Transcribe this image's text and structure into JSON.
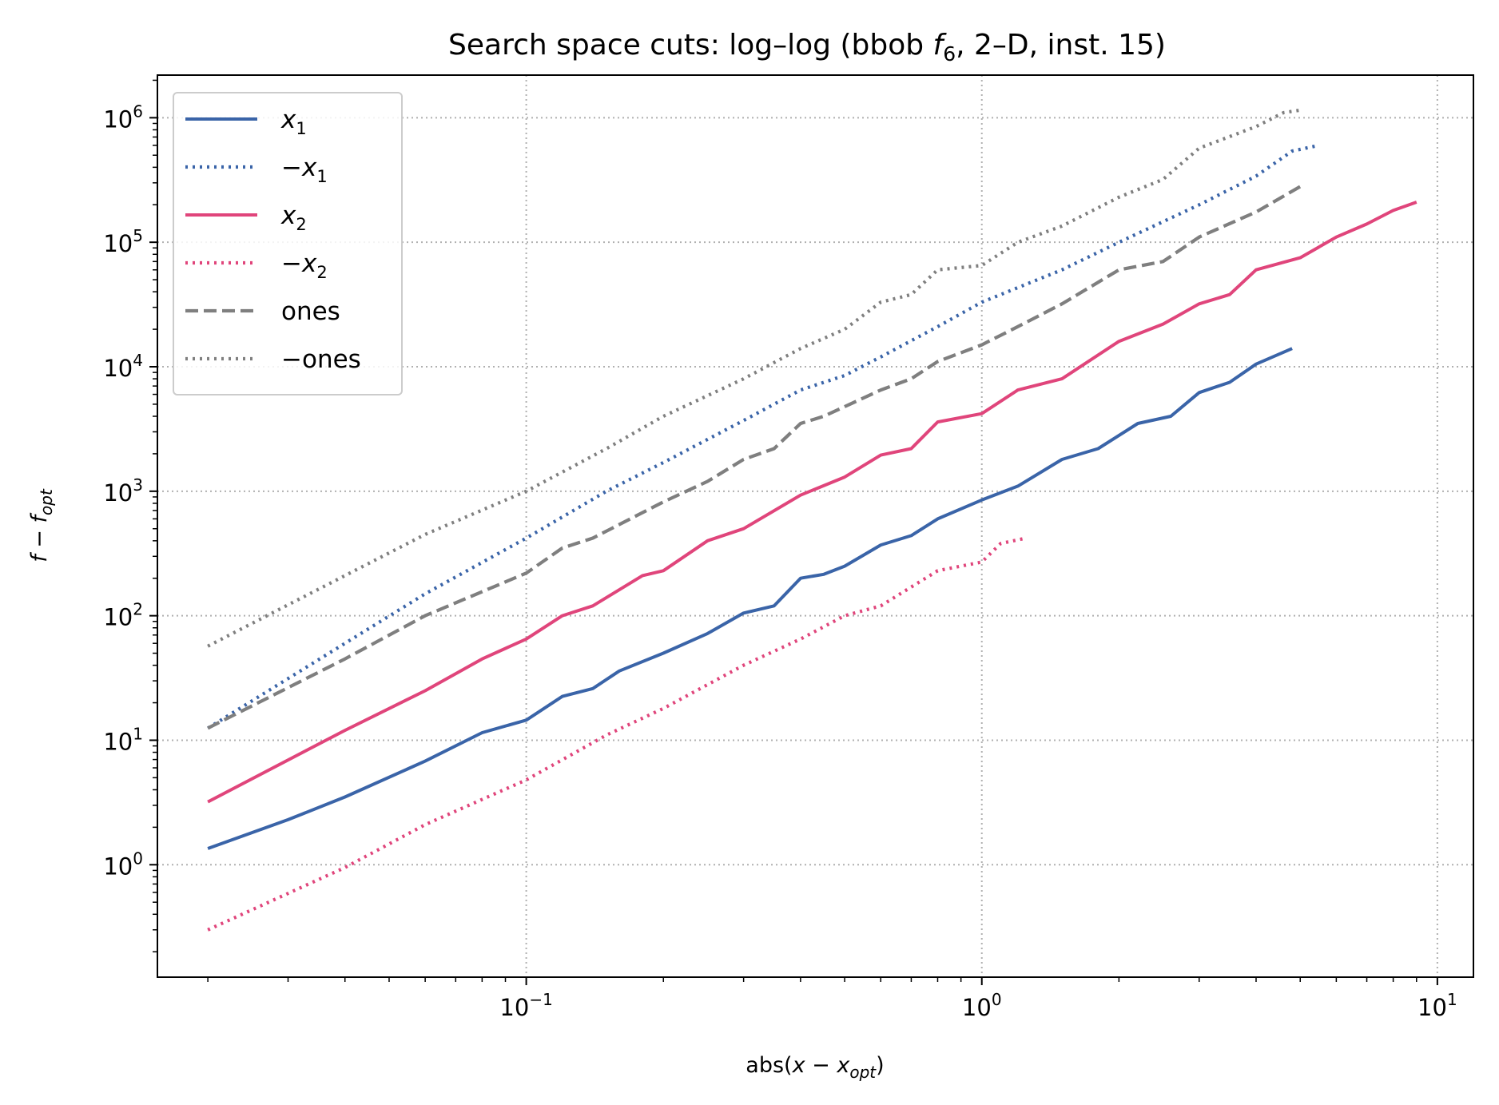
{
  "chart_data": {
    "type": "line",
    "title": "Search space cuts: log–log (bbob f₆, 2–D, inst. 15)",
    "xlabel": "abs(x − x_opt)",
    "ylabel": "f − f_opt",
    "x_scale": "log",
    "y_scale": "log",
    "xlim": [
      0.0155,
      12
    ],
    "ylim": [
      0.125,
      2200000
    ],
    "grid": true,
    "legend_position": "upper-left",
    "x_ticks": [
      {
        "value": 0.1,
        "base": "10",
        "exp": "−1"
      },
      {
        "value": 1,
        "base": "10",
        "exp": "0"
      },
      {
        "value": 10,
        "base": "10",
        "exp": "1"
      }
    ],
    "y_ticks": [
      {
        "value": 1,
        "base": "10",
        "exp": "0"
      },
      {
        "value": 10,
        "base": "10",
        "exp": "1"
      },
      {
        "value": 100,
        "base": "10",
        "exp": "2"
      },
      {
        "value": 1000,
        "base": "10",
        "exp": "3"
      },
      {
        "value": 10000,
        "base": "10",
        "exp": "4"
      },
      {
        "value": 100000,
        "base": "10",
        "exp": "5"
      },
      {
        "value": 1000000,
        "base": "10",
        "exp": "6"
      }
    ],
    "series": [
      {
        "name": "x₁",
        "label_main": "x",
        "label_prefix": "",
        "label_sub": "1",
        "color": "#3a64a8",
        "style": "solid",
        "x": [
          0.02,
          0.03,
          0.04,
          0.06,
          0.08,
          0.1,
          0.12,
          0.14,
          0.16,
          0.2,
          0.25,
          0.3,
          0.35,
          0.4,
          0.45,
          0.5,
          0.6,
          0.7,
          0.8,
          1.0,
          1.2,
          1.5,
          1.8,
          2.2,
          2.6,
          3.0,
          3.5,
          4.0,
          4.8
        ],
        "y": [
          1.35,
          2.3,
          3.5,
          6.8,
          11.5,
          14.5,
          22.5,
          26,
          36,
          50,
          72,
          105,
          120,
          200,
          215,
          250,
          370,
          440,
          600,
          850,
          1100,
          1800,
          2200,
          3500,
          4000,
          6200,
          7500,
          10500,
          14000
        ]
      },
      {
        "name": "−x₁",
        "label_main": "x",
        "label_prefix": "−",
        "label_sub": "1",
        "color": "#3a64a8",
        "style": "dotted",
        "x": [
          0.02,
          0.04,
          0.06,
          0.1,
          0.15,
          0.2,
          0.3,
          0.4,
          0.5,
          0.6,
          0.8,
          1.0,
          1.5,
          2.0,
          3.0,
          4.0,
          4.8,
          5.5
        ],
        "y": [
          12.5,
          60,
          150,
          420,
          1000,
          1700,
          3700,
          6500,
          8500,
          12000,
          21000,
          33000,
          60000,
          100000,
          200000,
          340000,
          540000,
          600000
        ]
      },
      {
        "name": "x₂",
        "label_main": "x",
        "label_prefix": "",
        "label_sub": "2",
        "color": "#e0457b",
        "style": "solid",
        "x": [
          0.02,
          0.04,
          0.06,
          0.08,
          0.1,
          0.12,
          0.14,
          0.18,
          0.2,
          0.25,
          0.3,
          0.4,
          0.5,
          0.6,
          0.7,
          0.8,
          1.0,
          1.2,
          1.5,
          2.0,
          2.5,
          3.0,
          3.5,
          4.0,
          5.0,
          6.0,
          7.0,
          8.0,
          9.0
        ],
        "y": [
          3.2,
          12,
          25,
          45,
          65,
          100,
          120,
          210,
          230,
          400,
          500,
          930,
          1300,
          1950,
          2200,
          3600,
          4200,
          6500,
          8000,
          16000,
          22000,
          32000,
          38000,
          60000,
          75000,
          110000,
          140000,
          180000,
          210000
        ]
      },
      {
        "name": "−x₂",
        "label_main": "x",
        "label_prefix": "−",
        "label_sub": "2",
        "color": "#e0457b",
        "style": "dotted",
        "x": [
          0.02,
          0.04,
          0.06,
          0.1,
          0.15,
          0.2,
          0.3,
          0.4,
          0.5,
          0.6,
          0.7,
          0.8,
          1.0,
          1.1,
          1.25
        ],
        "y": [
          0.3,
          0.95,
          2.1,
          4.8,
          11,
          18,
          40,
          65,
          100,
          120,
          170,
          230,
          270,
          380,
          420
        ]
      },
      {
        "name": "ones",
        "label_main": "ones",
        "label_prefix": "",
        "label_sub": "",
        "color": "#7f7f7f",
        "style": "dashed",
        "x": [
          0.02,
          0.04,
          0.06,
          0.1,
          0.12,
          0.14,
          0.2,
          0.25,
          0.3,
          0.35,
          0.4,
          0.45,
          0.6,
          0.7,
          0.8,
          1.0,
          1.2,
          1.5,
          2.0,
          2.5,
          3.0,
          4.0,
          5.0
        ],
        "y": [
          12.5,
          45,
          100,
          220,
          350,
          420,
          820,
          1200,
          1800,
          2200,
          3500,
          4000,
          6500,
          8000,
          11000,
          15000,
          21000,
          32000,
          60000,
          70000,
          110000,
          175000,
          280000
        ]
      },
      {
        "name": "−ones",
        "label_main": "ones",
        "label_prefix": "−",
        "label_sub": "",
        "color": "#7f7f7f",
        "style": "dotted",
        "x": [
          0.02,
          0.04,
          0.06,
          0.1,
          0.15,
          0.2,
          0.3,
          0.4,
          0.5,
          0.6,
          0.7,
          0.8,
          1.0,
          1.2,
          1.5,
          2.0,
          2.5,
          3.0,
          4.0,
          4.6,
          5.0
        ],
        "y": [
          57,
          210,
          450,
          1000,
          2200,
          4000,
          8000,
          14000,
          20000,
          33000,
          38000,
          60000,
          65000,
          100000,
          135000,
          230000,
          320000,
          570000,
          850000,
          1100000,
          1150000
        ]
      }
    ]
  }
}
